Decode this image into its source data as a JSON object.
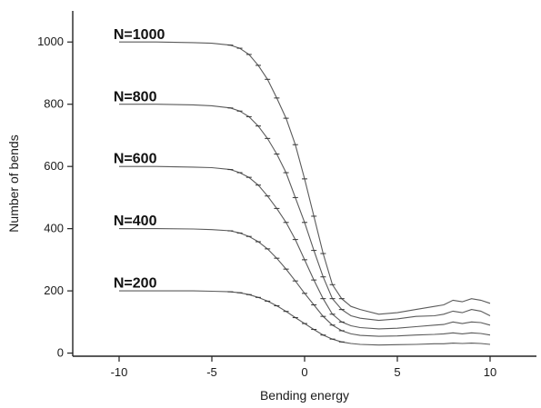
{
  "chart_data": {
    "type": "line",
    "title": "",
    "xlabel": "Bending energy",
    "ylabel": "Number of bends",
    "xlim": [
      -12.5,
      12.5
    ],
    "ylim": [
      -10,
      1100
    ],
    "x_ticks": [
      -10,
      -5,
      0,
      5,
      10
    ],
    "y_ticks": [
      0,
      200,
      400,
      600,
      800,
      1000
    ],
    "x_tick_labels": [
      "-10",
      "-5",
      "0",
      "5",
      "10"
    ],
    "y_tick_labels": [
      "0",
      "200",
      "400",
      "600",
      "800",
      "1000"
    ],
    "grid": false,
    "legend": "none",
    "line_color": "#5a5a5a",
    "series": [
      {
        "label": "N=1000",
        "label_pos": [
          -10.3,
          1010
        ],
        "x": [
          -10,
          -8,
          -6,
          -5,
          -4,
          -3.5,
          -3,
          -2.5,
          -2,
          -1.5,
          -1,
          -0.5,
          0,
          0.5,
          1,
          1.5,
          2,
          2.5,
          3,
          4,
          5,
          6,
          7,
          7.5,
          8,
          8.5,
          9,
          9.5,
          10
        ],
        "y": [
          1000,
          1000,
          998,
          996,
          990,
          980,
          960,
          925,
          880,
          820,
          755,
          670,
          560,
          440,
          320,
          220,
          175,
          150,
          140,
          125,
          130,
          140,
          150,
          155,
          170,
          165,
          175,
          170,
          160
        ]
      },
      {
        "label": "N=800",
        "label_pos": [
          -10.3,
          810
        ],
        "x": [
          -10,
          -8,
          -6,
          -5,
          -4,
          -3.5,
          -3,
          -2.5,
          -2,
          -1.5,
          -1,
          -0.5,
          0,
          0.5,
          1,
          1.5,
          2,
          2.5,
          3,
          4,
          5,
          6,
          7,
          7.5,
          8,
          8.5,
          9,
          9.5,
          10
        ],
        "y": [
          800,
          800,
          798,
          795,
          788,
          778,
          760,
          730,
          690,
          640,
          580,
          500,
          420,
          330,
          245,
          175,
          140,
          120,
          112,
          105,
          110,
          118,
          120,
          125,
          135,
          130,
          140,
          135,
          120
        ]
      },
      {
        "label": "N=600",
        "label_pos": [
          -10.3,
          610
        ],
        "x": [
          -10,
          -8,
          -6,
          -5,
          -4,
          -3.5,
          -3,
          -2.5,
          -2,
          -1.5,
          -1,
          -0.5,
          0,
          0.5,
          1,
          1.5,
          2,
          2.5,
          3,
          4,
          5,
          6,
          7,
          7.5,
          8,
          8.5,
          9,
          9.5,
          10
        ],
        "y": [
          600,
          600,
          598,
          596,
          590,
          580,
          565,
          540,
          505,
          465,
          420,
          365,
          300,
          235,
          175,
          125,
          100,
          88,
          82,
          78,
          80,
          85,
          90,
          92,
          100,
          95,
          100,
          98,
          90
        ]
      },
      {
        "label": "N=400",
        "label_pos": [
          -10.3,
          410
        ],
        "x": [
          -10,
          -8,
          -6,
          -5,
          -4,
          -3.5,
          -3,
          -2.5,
          -2,
          -1.5,
          -1,
          -0.5,
          0,
          0.5,
          1,
          1.5,
          2,
          2.5,
          3,
          4,
          5,
          6,
          7,
          7.5,
          8,
          8.5,
          9,
          9.5,
          10
        ],
        "y": [
          400,
          400,
          399,
          397,
          393,
          386,
          375,
          358,
          335,
          305,
          270,
          232,
          192,
          155,
          118,
          90,
          72,
          62,
          57,
          54,
          55,
          58,
          60,
          62,
          65,
          62,
          65,
          63,
          58
        ]
      },
      {
        "label": "N=200",
        "label_pos": [
          -10.3,
          210
        ],
        "x": [
          -10,
          -8,
          -6,
          -5,
          -4,
          -3.5,
          -3,
          -2.5,
          -2,
          -1.5,
          -1,
          -0.5,
          0,
          0.5,
          1,
          1.5,
          2,
          2.5,
          3,
          4,
          5,
          6,
          7,
          7.5,
          8,
          8.5,
          9,
          9.5,
          10
        ],
        "y": [
          200,
          200,
          200,
          199,
          197,
          194,
          188,
          179,
          167,
          152,
          134,
          114,
          95,
          76,
          58,
          45,
          36,
          31,
          28,
          26,
          27,
          28,
          30,
          30,
          32,
          31,
          32,
          31,
          28
        ]
      }
    ]
  }
}
